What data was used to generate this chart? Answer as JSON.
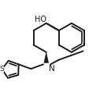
{
  "bg_color": "#ffffff",
  "line_color": "#1a1a1a",
  "lw": 1.4,
  "ho_label": "HO",
  "n_label": "N",
  "s_label": "S",
  "blen": 19.0,
  "chain_blen": 17.0,
  "th_blen": 14.0
}
